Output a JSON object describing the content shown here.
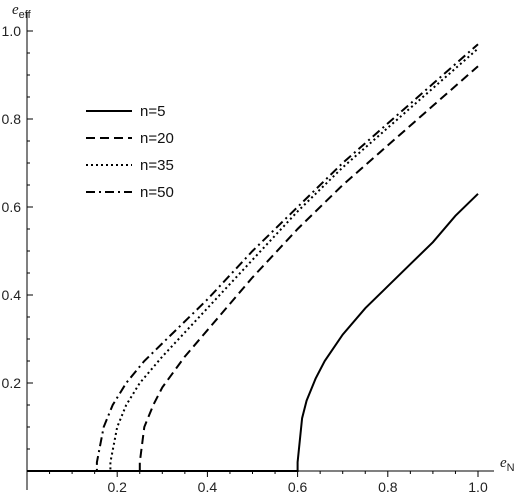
{
  "chart_data": {
    "type": "line",
    "xlabel": {
      "main": "e",
      "sub": "N"
    },
    "ylabel": {
      "main": "e",
      "sub": "eff"
    },
    "xlim": [
      0,
      1.0
    ],
    "ylim": [
      0,
      1.02
    ],
    "x_ticks": [
      "0.2",
      "0.4",
      "0.6",
      "0.8",
      "1.0"
    ],
    "y_ticks": [
      "0.2",
      "0.4",
      "0.6",
      "0.8",
      "1.0"
    ],
    "grid": false,
    "legend": "upper-left",
    "series": [
      {
        "name": "n=5",
        "dash": "solid",
        "x": [
          0,
          0.6,
          0.6,
          0.61,
          0.62,
          0.64,
          0.66,
          0.7,
          0.75,
          0.8,
          0.85,
          0.9,
          0.95,
          1.0
        ],
        "y": [
          0,
          0,
          0.02,
          0.12,
          0.16,
          0.21,
          0.25,
          0.31,
          0.37,
          0.42,
          0.47,
          0.52,
          0.58,
          0.63
        ]
      },
      {
        "name": "n=20",
        "dash": "dashed",
        "x": [
          0,
          0.25,
          0.25,
          0.26,
          0.28,
          0.3,
          0.35,
          0.4,
          0.5,
          0.6,
          0.7,
          0.8,
          0.9,
          1.0
        ],
        "y": [
          0,
          0,
          0.02,
          0.1,
          0.15,
          0.19,
          0.26,
          0.32,
          0.44,
          0.55,
          0.65,
          0.74,
          0.83,
          0.92
        ]
      },
      {
        "name": "n=35",
        "dash": "dotted",
        "x": [
          0,
          0.185,
          0.185,
          0.2,
          0.22,
          0.25,
          0.3,
          0.4,
          0.5,
          0.6,
          0.7,
          0.8,
          0.9,
          1.0
        ],
        "y": [
          0,
          0,
          0.02,
          0.1,
          0.15,
          0.2,
          0.26,
          0.37,
          0.48,
          0.59,
          0.69,
          0.78,
          0.87,
          0.96
        ]
      },
      {
        "name": "n=50",
        "dash": "dashdot",
        "x": [
          0,
          0.155,
          0.155,
          0.17,
          0.19,
          0.22,
          0.26,
          0.3,
          0.4,
          0.5,
          0.6,
          0.7,
          0.8,
          0.9,
          1.0
        ],
        "y": [
          0,
          0,
          0.02,
          0.1,
          0.15,
          0.2,
          0.25,
          0.29,
          0.39,
          0.5,
          0.6,
          0.7,
          0.79,
          0.88,
          0.97
        ]
      }
    ]
  }
}
